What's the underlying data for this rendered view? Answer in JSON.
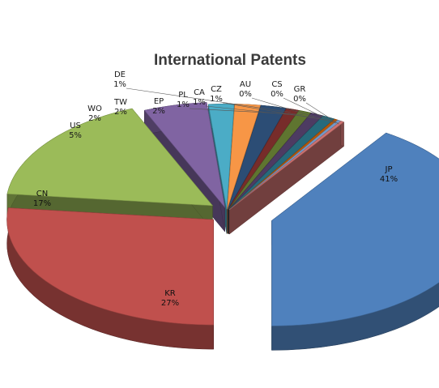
{
  "chart_data": {
    "type": "pie",
    "title": "International Patents",
    "legend": "none",
    "slices": [
      {
        "label": "JP",
        "value": 41,
        "value_label": "41%",
        "color": "#4f81bd"
      },
      {
        "label": "KR",
        "value": 27,
        "value_label": "27%",
        "color": "#c0504d"
      },
      {
        "label": "CN",
        "value": 17,
        "value_label": "17%",
        "color": "#9bbb59"
      },
      {
        "label": "US",
        "value": 5,
        "value_label": "5%",
        "color": "#8064a2"
      },
      {
        "label": "WO",
        "value": 2,
        "value_label": "2%",
        "color": "#4bacc6"
      },
      {
        "label": "TW",
        "value": 2,
        "value_label": "2%",
        "color": "#f79646"
      },
      {
        "label": "EP",
        "value": 2,
        "value_label": "2%",
        "color": "#2c4d75"
      },
      {
        "label": "DE",
        "value": 1,
        "value_label": "1%",
        "color": "#772c2a"
      },
      {
        "label": "PL",
        "value": 1,
        "value_label": "1%",
        "color": "#5f7530"
      },
      {
        "label": "CA",
        "value": 1,
        "value_label": "1%",
        "color": "#4d3b62"
      },
      {
        "label": "CZ",
        "value": 1,
        "value_label": "1%",
        "color": "#276a7c"
      },
      {
        "label": "AU",
        "value": 0,
        "value_label": "0%",
        "color": "#b65708"
      },
      {
        "label": "CS",
        "value": 0,
        "value_label": "0%",
        "color": "#729aca"
      },
      {
        "label": "GR",
        "value": 0,
        "value_label": "0%",
        "color": "#cd7371"
      }
    ]
  }
}
